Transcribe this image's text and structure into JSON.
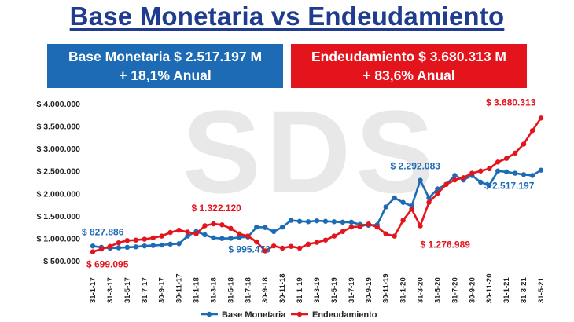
{
  "header": {
    "title": "Base Monetaria vs Endeudamiento"
  },
  "boxes": {
    "base": {
      "line1": "Base Monetaria $ 2.517.197 M",
      "line2": "+ 18,1% Anual",
      "color": "#1d6bb5"
    },
    "deuda": {
      "line1": "Endeudamiento $ 3.680.313 M",
      "line2": "+ 83,6% Anual",
      "color": "#e3141b"
    }
  },
  "watermark": "SDS",
  "chart_data": {
    "type": "line",
    "ylim": [
      500000,
      4000000
    ],
    "yticks": [
      "$ 500.000",
      "$ 1.000.000",
      "$ 1.500.000",
      "$ 2.000.000",
      "$ 2.500.000",
      "$ 3.000.000",
      "$ 3.500.000",
      "$ 4.000.000"
    ],
    "ytick_values": [
      500000,
      1000000,
      1500000,
      2000000,
      2500000,
      3000000,
      3500000,
      4000000
    ],
    "x_tick_labels": [
      "31-1-17",
      "31-3-17",
      "31-5-17",
      "31-7-17",
      "30-9-17",
      "30-11-17",
      "31-1-18",
      "31-3-18",
      "31-5-18",
      "31-7-18",
      "30-9-18",
      "30-11-18",
      "31-1-19",
      "31-3-19",
      "31-5-19",
      "31-7-19",
      "30-9-19",
      "30-11-19",
      "31-1-20",
      "31-3-20",
      "31-5-20",
      "31-7-20",
      "30-9-20",
      "30-11-20",
      "31-1-21",
      "31-3-21",
      "31-5-21"
    ],
    "x": [
      "31-1-17",
      "28-2-17",
      "31-3-17",
      "30-4-17",
      "31-5-17",
      "30-6-17",
      "31-7-17",
      "31-8-17",
      "30-9-17",
      "31-10-17",
      "30-11-17",
      "31-12-17",
      "31-1-18",
      "28-2-18",
      "31-3-18",
      "30-4-18",
      "31-5-18",
      "30-6-18",
      "31-7-18",
      "31-8-18",
      "30-9-18",
      "31-10-18",
      "30-11-18",
      "31-12-18",
      "31-1-19",
      "28-2-19",
      "31-3-19",
      "30-4-19",
      "31-5-19",
      "30-6-19",
      "31-7-19",
      "31-8-19",
      "30-9-19",
      "31-10-19",
      "30-11-19",
      "31-12-19",
      "31-1-20",
      "29-2-20",
      "31-3-20",
      "30-4-20",
      "31-5-20",
      "30-6-20",
      "31-7-20",
      "31-8-20",
      "30-9-20",
      "31-10-20",
      "30-11-20",
      "31-12-20",
      "31-1-21",
      "28-2-21",
      "31-3-21",
      "30-4-21",
      "31-5-21"
    ],
    "series": [
      {
        "name": "Base Monetaria",
        "color": "#1d6bb5",
        "values": [
          827886,
          800000,
          780000,
          790000,
          800000,
          810000,
          830000,
          840000,
          850000,
          870000,
          880000,
          1050000,
          1150000,
          1080000,
          1010000,
          995473,
          1000000,
          1020000,
          1030000,
          1250000,
          1240000,
          1150000,
          1250000,
          1400000,
          1380000,
          1370000,
          1390000,
          1380000,
          1370000,
          1360000,
          1360000,
          1310000,
          1290000,
          1300000,
          1700000,
          1900000,
          1800000,
          1720000,
          2292083,
          1900000,
          2100000,
          2200000,
          2400000,
          2300000,
          2400000,
          2250000,
          2180000,
          2500000,
          2480000,
          2450000,
          2420000,
          2400000,
          2517197
        ]
      },
      {
        "name": "Endeudamiento",
        "color": "#e3141b",
        "values": [
          699095,
          760000,
          820000,
          900000,
          950000,
          960000,
          980000,
          1010000,
          1050000,
          1130000,
          1180000,
          1140000,
          1100000,
          1280000,
          1322120,
          1300000,
          1220000,
          1100000,
          1050000,
          920000,
          720000,
          830000,
          780000,
          820000,
          780000,
          870000,
          910000,
          960000,
          1050000,
          1150000,
          1250000,
          1260000,
          1320000,
          1250000,
          1100000,
          1050000,
          1400000,
          1650000,
          1276989,
          1800000,
          2000000,
          2200000,
          2300000,
          2350000,
          2450000,
          2500000,
          2550000,
          2700000,
          2780000,
          2900000,
          3100000,
          3400000,
          3680313
        ]
      }
    ],
    "annotations": [
      {
        "text": "$ 827.886",
        "series": 0,
        "index": 0
      },
      {
        "text": "$ 699.095",
        "series": 1,
        "index": 0
      },
      {
        "text": "$ 1.322.120",
        "series": 1,
        "index": 14
      },
      {
        "text": "$ 995.473",
        "series": 0,
        "index": 15
      },
      {
        "text": "$ 2.292.083",
        "series": 0,
        "index": 38
      },
      {
        "text": "$ 1.276.989",
        "series": 1,
        "index": 38
      },
      {
        "text": "$ 3.680.313",
        "series": 1,
        "index": 52
      },
      {
        "text": "$ 2.517.197",
        "series": 0,
        "index": 52
      }
    ],
    "legend": [
      "Base Monetaria",
      "Endeudamiento"
    ],
    "legend_position": "bottom",
    "grid": false
  }
}
